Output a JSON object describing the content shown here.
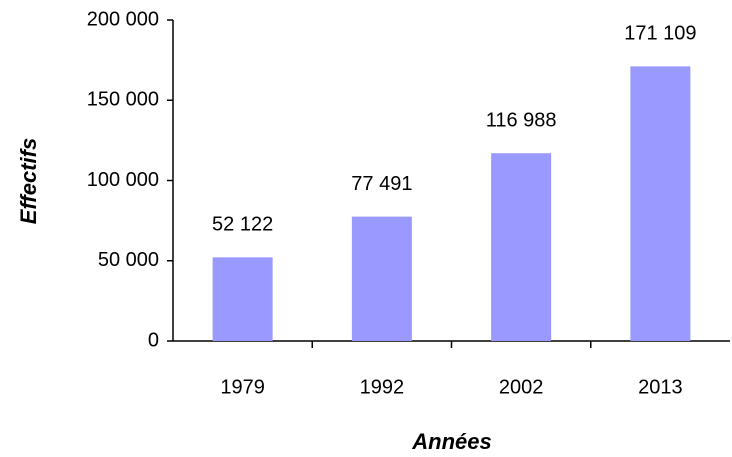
{
  "chart_data": {
    "type": "bar",
    "x_label": "Années",
    "y_label": "Effectifs",
    "categories": [
      "1979",
      "1992",
      "2002",
      "2013"
    ],
    "values": [
      52122,
      77491,
      116988,
      171109
    ],
    "value_labels": [
      "52 122",
      "77 491",
      "116 988",
      "171 109"
    ],
    "color": "#9999ff",
    "ylim": [
      0,
      200000
    ],
    "yticks": [
      0,
      {
        "value": 50000,
        "label": "50 000"
      },
      {
        "value": 100000,
        "label": "100 000"
      },
      {
        "value": 150000,
        "label": "150 000"
      },
      {
        "value": 200000,
        "label": "200 000"
      }
    ],
    "grid": false
  }
}
